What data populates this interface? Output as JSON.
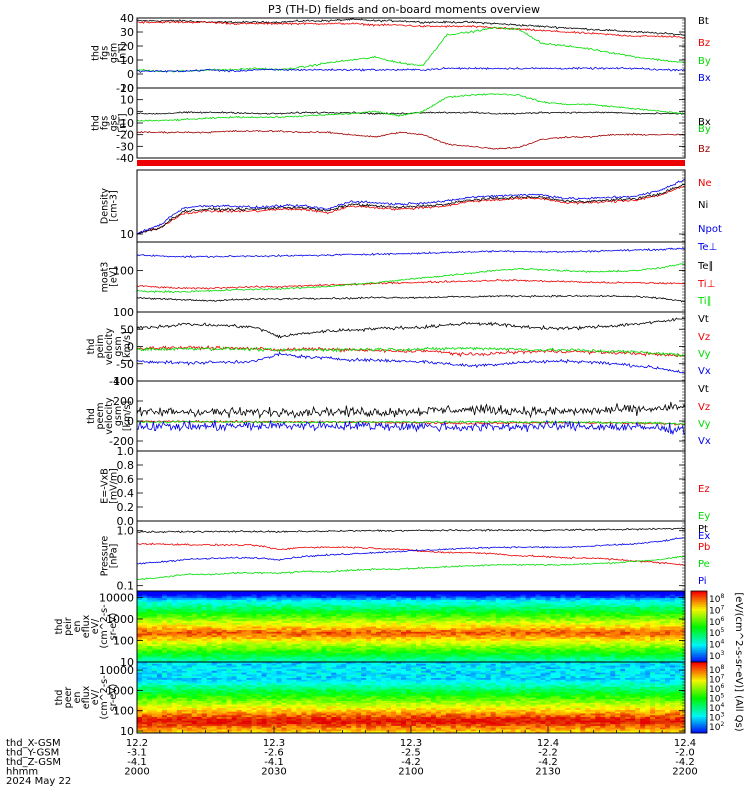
{
  "title": "P3 (TH-D) fields and on-board moments overview",
  "colors": {
    "black": "#000000",
    "red": "#ee0000",
    "green": "#00dd00",
    "blue": "#0000ee",
    "darkred": "#a00000"
  },
  "chart_data": [
    {
      "type": "line",
      "panel": "fgs",
      "ylabel": [
        "thd",
        "fgs",
        "gsm",
        "[nT]"
      ],
      "yticks": [
        "40",
        "30",
        "20",
        "10",
        "0",
        "-10"
      ],
      "ylim": [
        -10,
        40
      ],
      "series": [
        {
          "name": "Bt",
          "color": "black",
          "values": [
            38,
            38,
            38,
            37,
            37,
            37,
            37,
            38,
            38,
            39,
            38,
            38,
            37,
            37,
            37,
            36,
            35,
            34,
            33,
            32,
            31,
            30,
            29,
            28
          ]
        },
        {
          "name": "Bz",
          "color": "red",
          "values": [
            37,
            37,
            37,
            37,
            36,
            36,
            36,
            36,
            36,
            36,
            35,
            35,
            34,
            34,
            34,
            33,
            32,
            31,
            30,
            29,
            28,
            27,
            27,
            26
          ]
        },
        {
          "name": "By",
          "color": "green",
          "values": [
            3,
            2,
            2,
            3,
            3,
            4,
            3,
            5,
            8,
            10,
            12,
            8,
            6,
            28,
            30,
            33,
            32,
            22,
            20,
            18,
            15,
            12,
            10,
            8
          ]
        },
        {
          "name": "Bx",
          "color": "blue",
          "values": [
            2,
            2,
            2,
            3,
            2,
            3,
            3,
            3,
            3,
            3,
            3,
            3,
            3,
            4,
            4,
            4,
            4,
            4,
            4,
            4,
            4,
            4,
            3,
            3
          ]
        }
      ]
    },
    {
      "type": "line",
      "panel": "fgs_gse",
      "ylabel": [
        "thd",
        "fgs",
        "gse",
        "[nT]"
      ],
      "yticks": [
        "20",
        "10",
        "0",
        "-10",
        "-20",
        "-30",
        "-40"
      ],
      "ylim": [
        -40,
        20
      ],
      "series": [
        {
          "name": "Bx",
          "color": "black",
          "values": [
            -2,
            -2,
            -1,
            -1,
            -1,
            -2,
            -2,
            -1,
            -1,
            -1,
            -2,
            -2,
            -1,
            -1,
            -1,
            -2,
            -2,
            -1,
            -1,
            -1,
            -1,
            -2,
            -2,
            -2
          ]
        },
        {
          "name": "By",
          "color": "green",
          "values": [
            -8,
            -8,
            -7,
            -6,
            -5,
            -5,
            -5,
            -4,
            -3,
            -2,
            0,
            -4,
            0,
            12,
            14,
            15,
            14,
            8,
            6,
            6,
            4,
            2,
            0,
            -2
          ]
        },
        {
          "name": "Bz",
          "color": "darkred",
          "values": [
            -18,
            -18,
            -18,
            -18,
            -17,
            -17,
            -17,
            -18,
            -18,
            -20,
            -22,
            -18,
            -20,
            -28,
            -30,
            -32,
            -31,
            -24,
            -22,
            -22,
            -20,
            -20,
            -20,
            -20
          ]
        }
      ]
    },
    {
      "type": "line",
      "panel": "density",
      "ylabel": [
        "Density",
        "[cm-3]"
      ],
      "yticks": [
        "10"
      ],
      "ylim": [
        8,
        60
      ],
      "scale": "log",
      "series": [
        {
          "name": "Ne",
          "color": "red",
          "values": [
            10,
            12,
            18,
            19,
            19,
            19,
            20,
            20,
            18,
            22,
            21,
            20,
            21,
            22,
            25,
            26,
            27,
            27,
            24,
            24,
            25,
            26,
            30,
            38
          ]
        },
        {
          "name": "Ni",
          "color": "black",
          "values": [
            10,
            12,
            19,
            20,
            20,
            20,
            21,
            21,
            19,
            23,
            22,
            21,
            22,
            23,
            26,
            27,
            28,
            28,
            25,
            25,
            26,
            27,
            31,
            40
          ]
        },
        {
          "name": "Npot",
          "color": "blue",
          "values": [
            10,
            13,
            21,
            22,
            22,
            21,
            22,
            22,
            20,
            25,
            24,
            23,
            24,
            25,
            28,
            29,
            30,
            30,
            27,
            27,
            28,
            29,
            34,
            46
          ]
        }
      ]
    },
    {
      "type": "line",
      "panel": "temperature",
      "ylabel": [
        "moat3",
        "[eV]"
      ],
      "yticks": [
        "100"
      ],
      "ylim": [
        20,
        300
      ],
      "scale": "log",
      "series": [
        {
          "name": "Te⊥",
          "color": "blue",
          "values": [
            180,
            175,
            170,
            170,
            172,
            175,
            175,
            178,
            180,
            185,
            188,
            190,
            195,
            200,
            205,
            210,
            210,
            205,
            205,
            210,
            215,
            220,
            225,
            235
          ]
        },
        {
          "name": "Te∥",
          "color": "black",
          "values": [
            35,
            33,
            32,
            31,
            32,
            33,
            33,
            34,
            34,
            34,
            35,
            35,
            35,
            36,
            36,
            37,
            37,
            37,
            37,
            37,
            37,
            36,
            34,
            30
          ]
        },
        {
          "name": "Ti⊥",
          "color": "red",
          "values": [
            55,
            52,
            50,
            50,
            52,
            53,
            53,
            55,
            57,
            58,
            60,
            62,
            63,
            65,
            66,
            68,
            68,
            66,
            65,
            63,
            62,
            62,
            61,
            60
          ]
        },
        {
          "name": "Ti∥",
          "color": "green",
          "values": [
            45,
            44,
            44,
            45,
            47,
            48,
            49,
            51,
            54,
            58,
            62,
            68,
            75,
            82,
            90,
            100,
            106,
            104,
            98,
            95,
            96,
            100,
            110,
            130
          ]
        }
      ]
    },
    {
      "type": "line",
      "panel": "peim_velocity",
      "ylabel": [
        "thd",
        "peim",
        "velocity",
        "gsm",
        "[km/s]"
      ],
      "yticks": [
        "100",
        "50",
        "0",
        "-50",
        "-100"
      ],
      "ylim": [
        -100,
        100
      ],
      "series": [
        {
          "name": "Vt",
          "color": "black",
          "values": [
            55,
            58,
            65,
            62,
            60,
            55,
            28,
            38,
            45,
            48,
            52,
            54,
            56,
            62,
            68,
            65,
            58,
            54,
            52,
            56,
            60,
            66,
            72,
            82
          ]
        },
        {
          "name": "Vz",
          "color": "red",
          "values": [
            -5,
            -4,
            -3,
            -4,
            -5,
            -6,
            -10,
            -8,
            -8,
            -10,
            -12,
            -14,
            -12,
            -18,
            -24,
            -20,
            -16,
            -14,
            -14,
            -16,
            -18,
            -20,
            -24,
            -28
          ]
        },
        {
          "name": "Vy",
          "color": "green",
          "values": [
            -8,
            -8,
            -6,
            -6,
            -7,
            -8,
            -12,
            -10,
            -9,
            -9,
            -8,
            -8,
            -8,
            -6,
            -5,
            -6,
            -8,
            -10,
            -10,
            -12,
            -14,
            -16,
            -20,
            -26
          ]
        },
        {
          "name": "Vx",
          "color": "blue",
          "values": [
            -42,
            -45,
            -48,
            -46,
            -45,
            -42,
            -22,
            -30,
            -34,
            -38,
            -40,
            -42,
            -44,
            -50,
            -56,
            -52,
            -46,
            -44,
            -42,
            -45,
            -50,
            -56,
            -64,
            -76
          ]
        }
      ]
    },
    {
      "type": "line",
      "panel": "peem_velocity",
      "ylabel": [
        "thd",
        "peem",
        "velocity",
        "gsm",
        "[km/s]"
      ],
      "yticks": [
        "400",
        "200",
        "0",
        "-200"
      ],
      "ylim": [
        -300,
        400
      ],
      "series": [
        {
          "name": "Vt",
          "color": "black",
          "values": [
            80,
            90,
            95,
            90,
            85,
            85,
            90,
            95,
            95,
            90,
            90,
            95,
            100,
            110,
            115,
            110,
            100,
            95,
            95,
            100,
            110,
            115,
            125,
            140
          ]
        },
        {
          "name": "Vz",
          "color": "red",
          "values": [
            -5,
            -5,
            -6,
            -6,
            -7,
            -8,
            -10,
            -10,
            -10,
            -12,
            -14,
            -16,
            -16,
            -20,
            -24,
            -22,
            -18,
            -16,
            -16,
            -18,
            -20,
            -22,
            -26,
            -30
          ]
        },
        {
          "name": "Vy",
          "color": "green",
          "values": [
            -10,
            -10,
            -8,
            -8,
            -9,
            -10,
            -12,
            -12,
            -11,
            -11,
            -10,
            -10,
            -10,
            -8,
            -6,
            -8,
            -10,
            -12,
            -12,
            -14,
            -16,
            -18,
            -22,
            -28
          ]
        },
        {
          "name": "Vx",
          "color": "blue",
          "values": [
            -50,
            -52,
            -55,
            -54,
            -52,
            -50,
            -45,
            -45,
            -46,
            -48,
            -50,
            -52,
            -54,
            -60,
            -64,
            -60,
            -55,
            -52,
            -50,
            -54,
            -58,
            -64,
            -72,
            -85
          ]
        }
      ]
    },
    {
      "type": "line",
      "panel": "efield",
      "ylabel": [
        "E=-VxB",
        "[mV/m]"
      ],
      "yticks": [
        "1.0",
        "0.8",
        "0.6",
        "0.4",
        "0.2",
        "0.0"
      ],
      "ylim": [
        0,
        1
      ],
      "series": [
        {
          "name": "Ez",
          "color": "red",
          "values": []
        },
        {
          "name": "Ey",
          "color": "green",
          "values": []
        },
        {
          "name": "Ex",
          "color": "blue",
          "values": []
        }
      ]
    },
    {
      "type": "line",
      "panel": "pressure",
      "ylabel": [
        "Pressure",
        "[nPa]"
      ],
      "yticks": [
        "1.0",
        "0.1"
      ],
      "ylim": [
        0.08,
        1.5
      ],
      "scale": "log",
      "series": [
        {
          "name": "Pt",
          "color": "black",
          "values": [
            0.95,
            0.95,
            0.96,
            0.96,
            0.97,
            0.97,
            0.95,
            0.97,
            0.98,
            0.99,
            1.0,
            1.0,
            1.01,
            1.01,
            1.02,
            1.02,
            1.02,
            1.02,
            1.03,
            1.04,
            1.05,
            1.06,
            1.08,
            1.1
          ]
        },
        {
          "name": "Pb",
          "color": "red",
          "values": [
            0.58,
            0.57,
            0.56,
            0.55,
            0.55,
            0.54,
            0.45,
            0.5,
            0.5,
            0.5,
            0.48,
            0.46,
            0.42,
            0.4,
            0.4,
            0.38,
            0.35,
            0.34,
            0.32,
            0.32,
            0.3,
            0.28,
            0.26,
            0.24
          ]
        },
        {
          "name": "Pe",
          "color": "green",
          "values": [
            0.13,
            0.14,
            0.16,
            0.16,
            0.17,
            0.17,
            0.17,
            0.18,
            0.18,
            0.19,
            0.2,
            0.2,
            0.21,
            0.22,
            0.23,
            0.24,
            0.24,
            0.24,
            0.24,
            0.25,
            0.26,
            0.28,
            0.3,
            0.34
          ]
        },
        {
          "name": "Pi",
          "color": "blue",
          "values": [
            0.25,
            0.27,
            0.3,
            0.31,
            0.32,
            0.32,
            0.3,
            0.34,
            0.36,
            0.38,
            0.4,
            0.42,
            0.44,
            0.46,
            0.48,
            0.5,
            0.5,
            0.5,
            0.5,
            0.52,
            0.55,
            0.58,
            0.64,
            0.75
          ]
        }
      ]
    },
    {
      "type": "heatmap",
      "panel": "peir_eflux",
      "ylabel": [
        "thd",
        "peir",
        "en",
        "eflux",
        "eV/",
        "(cm^2-s-",
        "sr-eV)"
      ],
      "yticks": [
        "10000",
        "1000",
        "100",
        "10"
      ],
      "ylim": [
        10,
        20000
      ],
      "scale": "log",
      "colorbar": {
        "label": "[eV/(cm^2-s-sr-eV)]",
        "ticks": [
          "10^8",
          "10^7",
          "10^6",
          "10^5",
          "10^4",
          "10^3"
        ]
      }
    },
    {
      "type": "heatmap",
      "panel": "peer_eflux",
      "ylabel": [
        "thd",
        "peer",
        "en",
        "eflux",
        "eV/",
        "(cm^2-s-",
        "sr-eV)"
      ],
      "yticks": [
        "10000",
        "1000",
        "100",
        "10"
      ],
      "ylim": [
        8,
        25000
      ],
      "scale": "log",
      "colorbar": {
        "label": "[eV/(cm^2-s-sr-eV)]",
        "ticks": [
          "10^8",
          "10^7",
          "10^6",
          "10^5",
          "10^4",
          "10^3",
          "10^2"
        ]
      }
    }
  ],
  "qa_label": "(All Qs)",
  "xaxis": {
    "rows": [
      {
        "label": "thd_X-GSM",
        "values": [
          "12.2",
          "12.3",
          "12.3",
          "12.4",
          "12.4"
        ]
      },
      {
        "label": "thd_Y-GSM",
        "values": [
          "-3.1",
          "-2.6",
          "-2.5",
          "-2.2",
          "-2.0"
        ]
      },
      {
        "label": "thd_Z-GSM",
        "values": [
          "-4.1",
          "-4.1",
          "-4.2",
          "-4.2",
          "-4.2"
        ]
      },
      {
        "label": "hhmm",
        "values": [
          "2000",
          "2030",
          "2100",
          "2130",
          "2200"
        ]
      }
    ],
    "date": "2024 May 22"
  }
}
